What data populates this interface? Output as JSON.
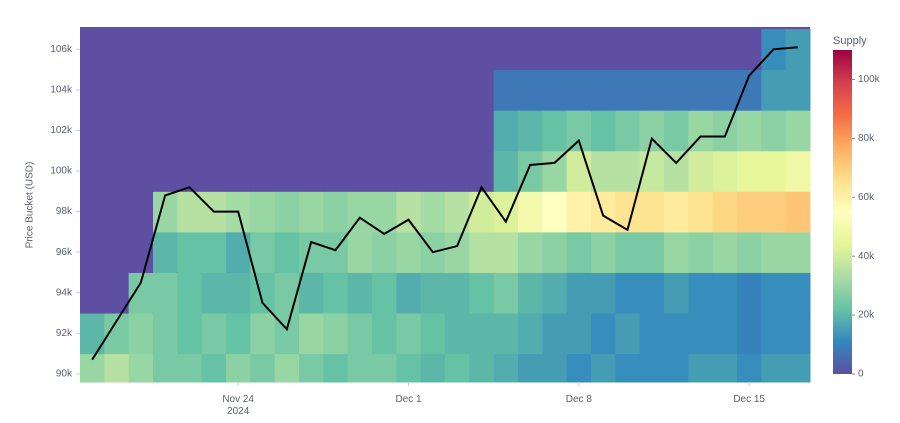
{
  "chart_data": {
    "type": "heatmap",
    "y_label": "Price Bucket (USD)",
    "colorbar_title": "Supply",
    "x": [
      "2024-11-18",
      "2024-11-19",
      "2024-11-20",
      "2024-11-21",
      "2024-11-22",
      "2024-11-23",
      "2024-11-24",
      "2024-11-25",
      "2024-11-26",
      "2024-11-27",
      "2024-11-28",
      "2024-11-29",
      "2024-11-30",
      "2024-12-01",
      "2024-12-02",
      "2024-12-03",
      "2024-12-04",
      "2024-12-05",
      "2024-12-06",
      "2024-12-07",
      "2024-12-08",
      "2024-12-09",
      "2024-12-10",
      "2024-12-11",
      "2024-12-12",
      "2024-12-13",
      "2024-12-14",
      "2024-12-15",
      "2024-12-16",
      "2024-12-17"
    ],
    "y": [
      90000,
      92000,
      94000,
      96000,
      98000,
      100000,
      102000,
      104000,
      106000
    ],
    "z": [
      [
        30000,
        35000,
        30000,
        25000,
        25000,
        22000,
        28000,
        25000,
        30000,
        25000,
        22000,
        25000,
        25000,
        22000,
        20000,
        22000,
        20000,
        18000,
        15000,
        15000,
        12000,
        15000,
        12000,
        12000,
        12000,
        15000,
        15000,
        12000,
        15000,
        15000
      ],
      [
        20000,
        25000,
        28000,
        25000,
        22000,
        25000,
        22000,
        28000,
        25000,
        30000,
        28000,
        25000,
        22000,
        25000,
        22000,
        20000,
        20000,
        20000,
        18000,
        15000,
        15000,
        12000,
        15000,
        12000,
        12000,
        12000,
        12000,
        10000,
        12000,
        12000
      ],
      [
        0,
        0,
        25000,
        25000,
        22000,
        20000,
        20000,
        22000,
        25000,
        20000,
        22000,
        20000,
        22000,
        18000,
        20000,
        20000,
        22000,
        25000,
        20000,
        18000,
        15000,
        15000,
        12000,
        12000,
        15000,
        12000,
        12000,
        10000,
        12000,
        12000
      ],
      [
        0,
        0,
        0,
        20000,
        22000,
        22000,
        18000,
        25000,
        22000,
        25000,
        25000,
        30000,
        28000,
        30000,
        28000,
        30000,
        35000,
        35000,
        30000,
        28000,
        25000,
        28000,
        25000,
        25000,
        30000,
        28000,
        30000,
        28000,
        30000,
        30000
      ],
      [
        0,
        0,
        0,
        30000,
        35000,
        35000,
        32000,
        30000,
        28000,
        30000,
        28000,
        30000,
        30000,
        35000,
        32000,
        35000,
        40000,
        42000,
        50000,
        55000,
        60000,
        62000,
        65000,
        65000,
        62000,
        65000,
        68000,
        70000,
        70000,
        72000
      ],
      [
        0,
        0,
        0,
        0,
        0,
        0,
        0,
        0,
        0,
        0,
        0,
        0,
        0,
        0,
        0,
        0,
        0,
        20000,
        25000,
        30000,
        40000,
        35000,
        35000,
        38000,
        35000,
        40000,
        42000,
        45000,
        45000,
        48000
      ],
      [
        0,
        0,
        0,
        0,
        0,
        0,
        0,
        0,
        0,
        0,
        0,
        0,
        0,
        0,
        0,
        0,
        0,
        18000,
        20000,
        22000,
        25000,
        22000,
        25000,
        28000,
        25000,
        30000,
        28000,
        30000,
        28000,
        30000
      ],
      [
        0,
        0,
        0,
        0,
        0,
        0,
        0,
        0,
        0,
        0,
        0,
        0,
        0,
        0,
        0,
        0,
        0,
        8000,
        8000,
        8000,
        8000,
        8000,
        8000,
        8000,
        8000,
        8000,
        8000,
        8000,
        15000,
        15000
      ],
      [
        0,
        0,
        0,
        0,
        0,
        0,
        0,
        0,
        0,
        0,
        0,
        0,
        0,
        0,
        0,
        0,
        0,
        0,
        0,
        0,
        0,
        0,
        0,
        0,
        0,
        0,
        0,
        0,
        12000,
        15000
      ]
    ],
    "zlim": [
      0,
      110000
    ],
    "zticks": [
      0,
      {
        "value": 20000,
        "label": "20k"
      },
      {
        "value": 40000,
        "label": "40k"
      },
      {
        "value": 60000,
        "label": "60k"
      },
      {
        "value": 80000,
        "label": "80k"
      },
      {
        "value": 100000,
        "label": "100k"
      }
    ],
    "colorscale": [
      "#5e4fa2",
      "#3288bd",
      "#66c2a5",
      "#abdda4",
      "#e6f598",
      "#ffffbf",
      "#fee08b",
      "#fdae61",
      "#f46d43",
      "#d53e4f",
      "#9e0142"
    ],
    "ylim": [
      89600,
      107100
    ],
    "yticks": [
      {
        "value": 90000,
        "label": "90k"
      },
      {
        "value": 92000,
        "label": "92k"
      },
      {
        "value": 94000,
        "label": "94k"
      },
      {
        "value": 96000,
        "label": "96k"
      },
      {
        "value": 98000,
        "label": "98k"
      },
      {
        "value": 100000,
        "label": "100k"
      },
      {
        "value": 102000,
        "label": "102k"
      },
      {
        "value": 104000,
        "label": "104k"
      },
      {
        "value": 106000,
        "label": "106k"
      }
    ],
    "xticks": [
      {
        "value": "2024-11-24",
        "label": "Nov 24\n2024"
      },
      {
        "value": "2024-12-01",
        "label": "Dec 1"
      },
      {
        "value": "2024-12-08",
        "label": "Dec 8"
      },
      {
        "value": "2024-12-15",
        "label": "Dec 15"
      }
    ],
    "line": {
      "color": "#000000",
      "values": [
        90700,
        92600,
        94500,
        98800,
        99200,
        98000,
        98000,
        93500,
        92200,
        96500,
        96100,
        97700,
        96900,
        97600,
        96000,
        96300,
        99200,
        97500,
        100300,
        100400,
        101500,
        97800,
        97100,
        101600,
        100400,
        101700,
        101700,
        104700,
        106000,
        106100
      ]
    }
  }
}
